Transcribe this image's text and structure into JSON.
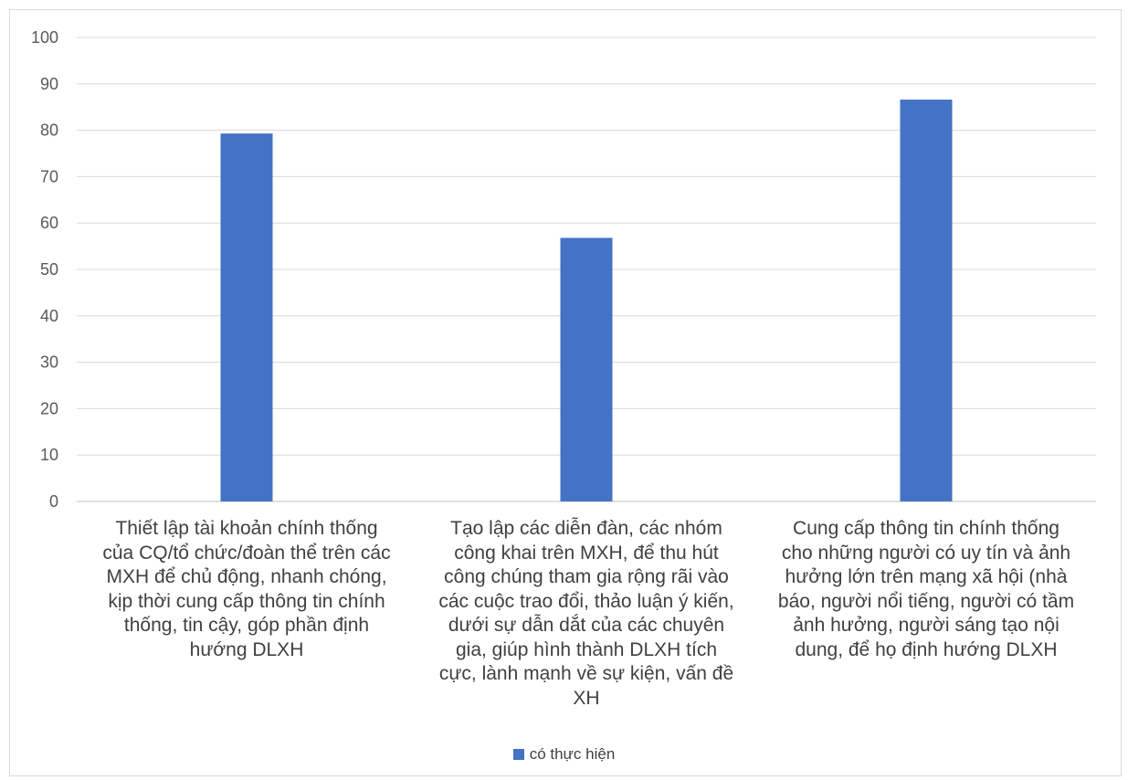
{
  "chart_data": {
    "type": "bar",
    "categories": [
      "Thiết lập tài khoản chính thống của CQ/tổ chức/đoàn thể trên các MXH để chủ động, nhanh chóng, kịp thời cung cấp thông tin chính thống, tin cậy, góp phần định hướng DLXH",
      "Tạo lập các diễn đàn, các nhóm công khai trên MXH, để thu hút công chúng tham gia rộng rãi vào các cuộc trao đổi, thảo luận ý kiến, dưới sự dẫn dắt của các chuyên gia, giúp hình thành DLXH tích cực, lành mạnh về sự kiện, vấn đề XH",
      "Cung cấp thông tin chính thống cho những người có uy tín và ảnh hưởng lớn trên mạng xã hội (nhà báo, người nổi tiếng, người có tầm ảnh hưởng, người sáng tạo nội dung, để họ định hướng DLXH"
    ],
    "series": [
      {
        "name": "có thực hiện",
        "values": [
          79.3,
          56.8,
          86.6
        ],
        "color": "#4472c4"
      }
    ],
    "ylim": [
      0,
      100
    ],
    "yticks": [
      0,
      10,
      20,
      30,
      40,
      50,
      60,
      70,
      80,
      90,
      100
    ],
    "grid": true,
    "legend_position": "bottom",
    "category_lines": [
      [
        "Thiết lập tài khoản chính thống",
        "của CQ/tổ chức/đoàn thể trên các",
        "MXH để chủ động, nhanh chóng,",
        "kịp thời cung cấp thông tin chính",
        "thống, tin cậy, góp phần định",
        "hướng DLXH"
      ],
      [
        "Tạo lập các diễn đàn, các nhóm",
        "công khai trên MXH, để thu hút",
        "công chúng tham gia rộng rãi vào",
        "các cuộc trao đổi, thảo luận ý kiến,",
        "dưới sự dẫn dắt của các chuyên",
        "gia, giúp hình thành DLXH tích",
        "cực, lành mạnh về sự kiện, vấn đề",
        "XH"
      ],
      [
        "Cung cấp thông tin chính thống",
        "cho những người có uy tín và ảnh",
        "hưởng lớn trên mạng xã hội (nhà",
        "báo, người nổi tiếng, người có tầm",
        "ảnh hưởng, người sáng tạo nội",
        "dung, để họ định hướng DLXH"
      ]
    ]
  }
}
